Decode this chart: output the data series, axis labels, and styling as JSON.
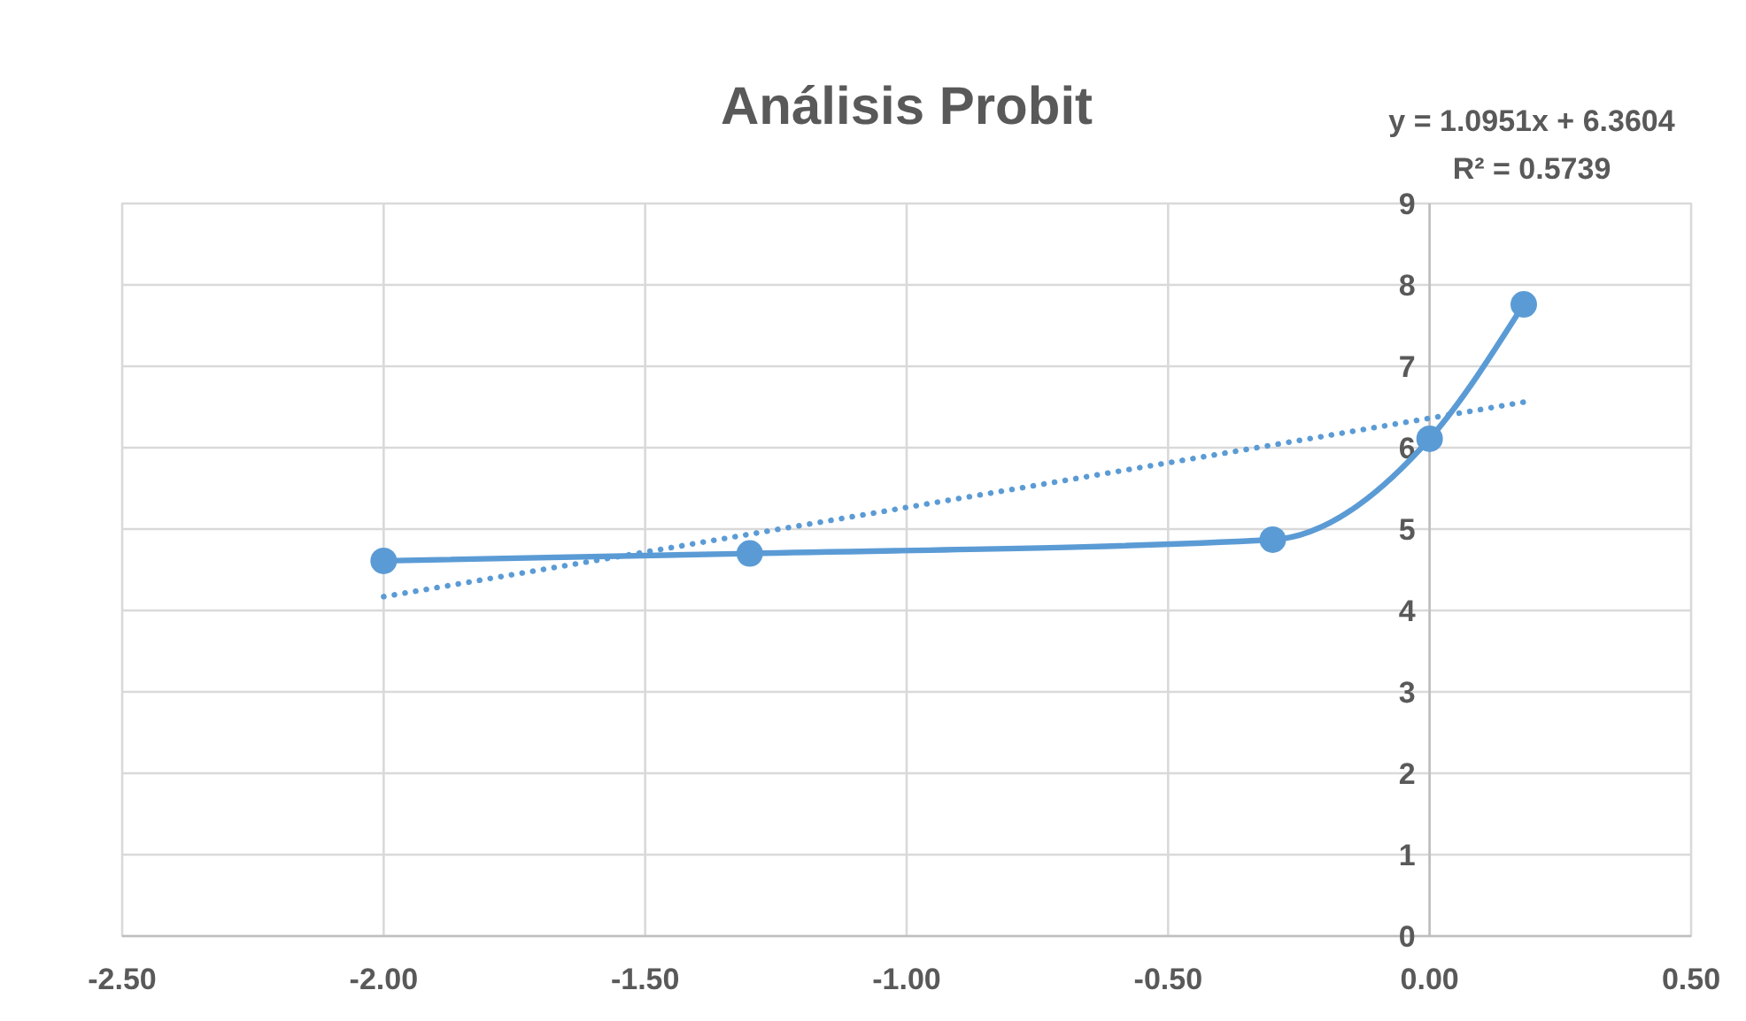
{
  "chart_data": {
    "type": "line",
    "title": "Análisis Probit",
    "x": [
      -2,
      -1.3,
      -0.3,
      0,
      0.18
    ],
    "series": [
      {
        "color": "#5b9bd5",
        "values": [
          4.61,
          4.7,
          4.87,
          6.11,
          7.76
        ],
        "marker": "circle",
        "line_style": "solid"
      },
      {
        "type": "line",
        "color": "#5b9bd5",
        "x": [
          -2,
          0.18
        ],
        "values": [
          4.17,
          6.56
        ],
        "marker": "none",
        "line_style": "dotted"
      }
    ],
    "xlim": [
      -2.5,
      0.5
    ],
    "xticks": [
      {
        "value": -2.5,
        "label": "-2.50"
      },
      {
        "value": -2,
        "label": "-2.00"
      },
      {
        "value": -1.5,
        "label": "-1.50"
      },
      {
        "value": -1,
        "label": "-1.00"
      },
      {
        "value": -0.5,
        "label": "-0.50"
      },
      {
        "value": 0,
        "label": "0.00"
      },
      {
        "value": 0.5,
        "label": "0.50"
      }
    ],
    "ylim": [
      0,
      9
    ],
    "yticks": [
      0,
      1,
      2,
      3,
      4,
      5,
      6,
      7,
      8,
      9
    ],
    "grid": true,
    "annotations": [
      "y = 1.0951x + 6.3604",
      "R² = 0.5739"
    ]
  }
}
